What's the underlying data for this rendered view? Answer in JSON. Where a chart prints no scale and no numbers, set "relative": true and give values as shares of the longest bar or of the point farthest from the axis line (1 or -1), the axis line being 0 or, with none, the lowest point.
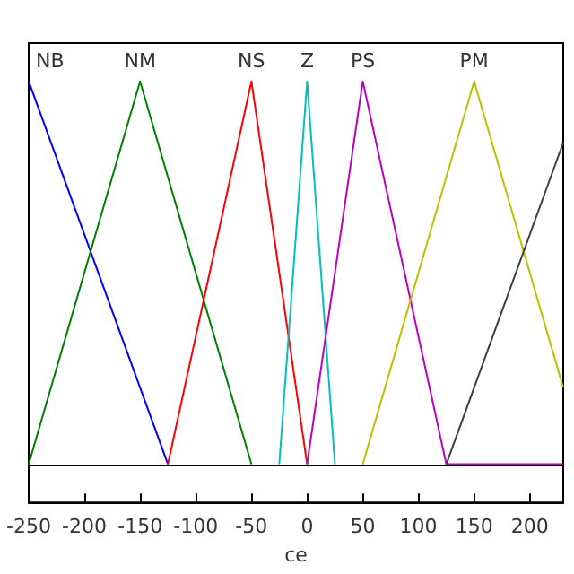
{
  "chart_data": {
    "type": "line",
    "xlabel": "ce",
    "xlim": [
      -250,
      230
    ],
    "xticks": [
      -250,
      -200,
      -150,
      -100,
      -50,
      0,
      50,
      100,
      150,
      200
    ],
    "relative": true,
    "grid": false,
    "legend": false,
    "marker": "none",
    "line_style": "solid",
    "series": [
      {
        "name": "NB",
        "color": "#0000ff",
        "x": [
          -250,
          -125
        ],
        "values": [
          1,
          0
        ]
      },
      {
        "name": "NM",
        "color": "#008000",
        "x": [
          -250,
          -150,
          -50
        ],
        "values": [
          0,
          1,
          0
        ]
      },
      {
        "name": "NS",
        "color": "#ff0000",
        "x": [
          -125,
          -50,
          0
        ],
        "values": [
          0,
          1,
          0
        ]
      },
      {
        "name": "Z",
        "color": "#00bfbf",
        "x": [
          -25,
          0,
          25
        ],
        "values": [
          0,
          1,
          0
        ]
      },
      {
        "name": "PS",
        "color": "#bf00bf",
        "x": [
          0,
          50,
          125,
          230
        ],
        "values": [
          0,
          1,
          0,
          0
        ]
      },
      {
        "name": "PM",
        "color": "#bfbf00",
        "x": [
          50,
          150,
          230
        ],
        "values": [
          0,
          1,
          0.2
        ]
      },
      {
        "color": "#404040",
        "x": [
          125,
          230
        ],
        "values": [
          0,
          0.84
        ]
      }
    ]
  }
}
